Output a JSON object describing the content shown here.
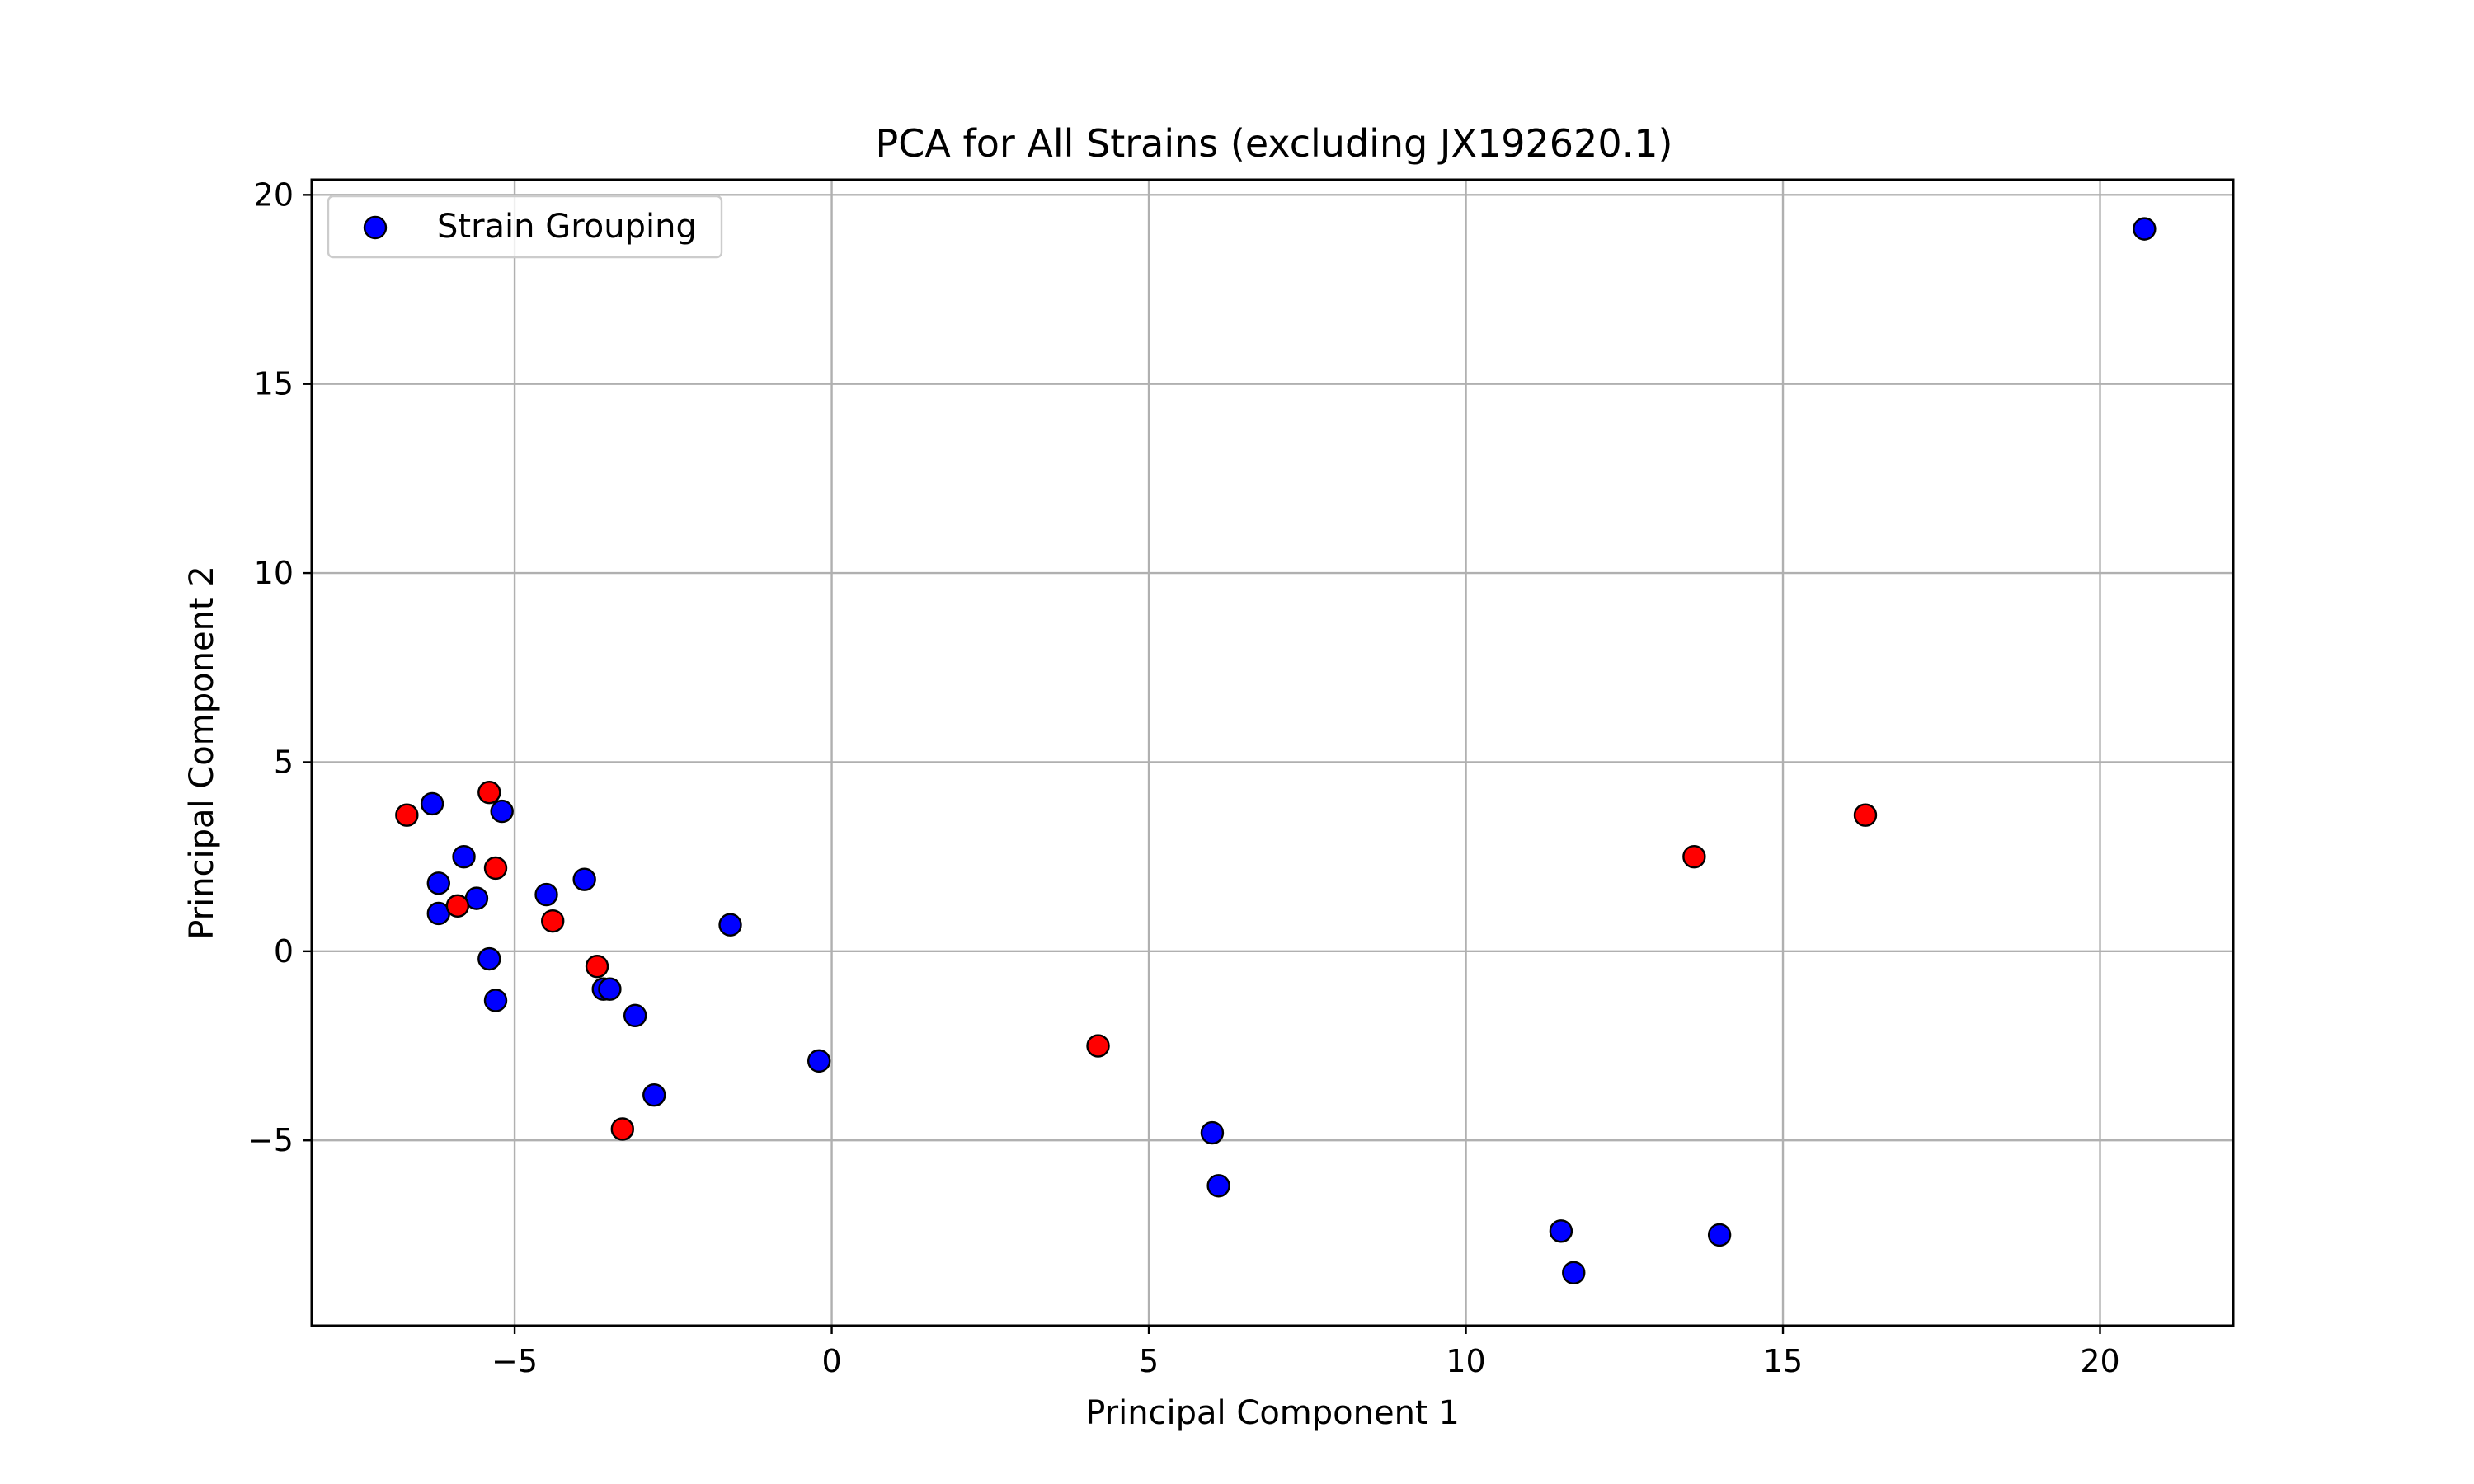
{
  "chart_data": {
    "type": "scatter",
    "title": "PCA for All Strains (excluding JX192620.1)",
    "xlabel": "Principal Component 1",
    "ylabel": "Principal Component 2",
    "xlim": [
      -8.2,
      22.1
    ],
    "ylim": [
      -9.9,
      20.4
    ],
    "xticks": [
      -5,
      0,
      5,
      10,
      15,
      20
    ],
    "xtick_labels": [
      "−5",
      "0",
      "5",
      "10",
      "15",
      "20"
    ],
    "yticks": [
      -5,
      0,
      5,
      10,
      15,
      20
    ],
    "ytick_labels": [
      "−5",
      "0",
      "5",
      "10",
      "15",
      "20"
    ],
    "grid": true,
    "legend": {
      "position": "top-left",
      "label": "Strain Grouping",
      "color": "#0000ff"
    },
    "colors": {
      "blue": "#0000ff",
      "red": "#ff0000",
      "edge": "#000000"
    },
    "series": [
      {
        "name": "Strain Grouping",
        "color": "#0000ff",
        "points": [
          [
            20.7,
            19.1
          ],
          [
            -6.3,
            3.9
          ],
          [
            -6.2,
            1.8
          ],
          [
            -6.2,
            1.0
          ],
          [
            -5.8,
            2.5
          ],
          [
            -5.6,
            1.4
          ],
          [
            -5.4,
            -0.2
          ],
          [
            -5.3,
            -1.3
          ],
          [
            -5.2,
            3.7
          ],
          [
            -4.5,
            1.5
          ],
          [
            -3.9,
            1.9
          ],
          [
            -3.6,
            -1.0
          ],
          [
            -3.5,
            -1.0
          ],
          [
            -3.1,
            -1.7
          ],
          [
            -2.8,
            -3.8
          ],
          [
            -1.6,
            0.7
          ],
          [
            -0.2,
            -2.9
          ],
          [
            6.0,
            -4.8
          ],
          [
            6.1,
            -6.2
          ],
          [
            11.5,
            -7.4
          ],
          [
            11.7,
            -8.5
          ],
          [
            14.0,
            -7.5
          ]
        ]
      },
      {
        "color": "#ff0000",
        "points": [
          [
            -6.7,
            3.6
          ],
          [
            -5.4,
            4.2
          ],
          [
            -5.9,
            1.2
          ],
          [
            -5.3,
            2.2
          ],
          [
            -4.4,
            0.8
          ],
          [
            -3.7,
            -0.4
          ],
          [
            -3.3,
            -4.7
          ],
          [
            4.2,
            -2.5
          ],
          [
            13.6,
            2.5
          ],
          [
            16.3,
            3.6
          ]
        ]
      }
    ]
  }
}
